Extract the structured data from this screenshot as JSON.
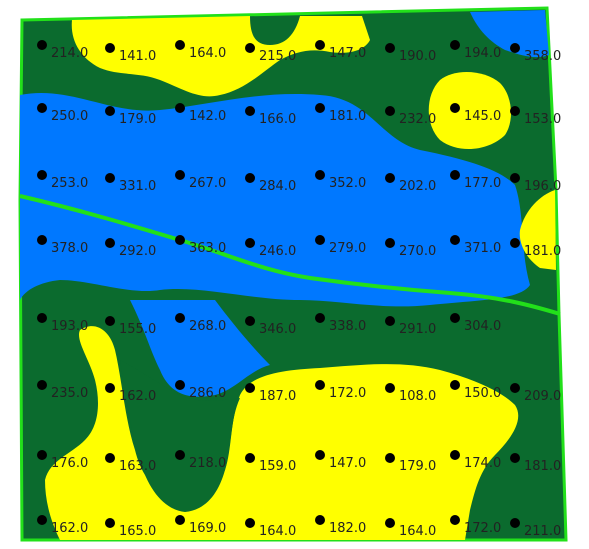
{
  "map": {
    "colors": {
      "yellow_zone": "#ffff00",
      "green_zone": "#0b6b2e",
      "blue_zone": "#0078ff",
      "boundary": "#22e01a",
      "marker": "#000000"
    },
    "rows": [
      {
        "labels": [
          "214.0",
          "141.0",
          "164.0",
          "215.0",
          "147.0",
          "190.0",
          "194.0",
          "358.0"
        ]
      },
      {
        "labels": [
          "250.0",
          "179.0",
          "142.0",
          "166.0",
          "181.0",
          "232.0",
          "145.0",
          "153.0"
        ]
      },
      {
        "labels": [
          "253.0",
          "331.0",
          "267.0",
          "284.0",
          "352.0",
          "202.0",
          "177.0",
          "196.0"
        ]
      },
      {
        "labels": [
          "378.0",
          "292.0",
          "363.0",
          "246.0",
          "279.0",
          "270.0",
          "371.0",
          "181.0"
        ]
      },
      {
        "labels": [
          "193.0",
          "155.0",
          "268.0",
          "346.0",
          "338.0",
          "291.0",
          "304.0"
        ]
      },
      {
        "labels": [
          "235.0",
          "162.0",
          "286.0",
          "187.0",
          "172.0",
          "108.0",
          "150.0",
          "209.0"
        ]
      },
      {
        "labels": [
          "176.0",
          "163.0",
          "218.0",
          "159.0",
          "147.0",
          "179.0",
          "174.0",
          "181.0"
        ]
      },
      {
        "labels": [
          "162.0",
          "165.0",
          "169.0",
          "164.0",
          "182.0",
          "164.0",
          "172.0",
          "211.0"
        ]
      }
    ]
  }
}
